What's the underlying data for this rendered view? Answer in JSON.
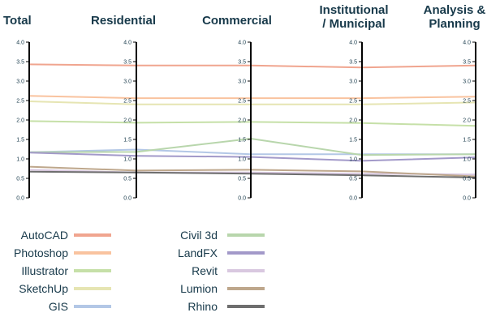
{
  "chart_data": {
    "type": "parallel-coordinates",
    "axes": [
      "Total",
      "Residential",
      "Commercial",
      "Institutional / Municipal",
      "Analysis & Planning"
    ],
    "axis_title_lines": [
      [
        "Total"
      ],
      [
        "Residential"
      ],
      [
        "Commercial"
      ],
      [
        "Institutional",
        "/ Municipal"
      ],
      [
        "Analysis &",
        "Planning"
      ]
    ],
    "ylim": [
      0,
      4.0
    ],
    "yticks": [
      "0.0",
      "0.5",
      "1.0",
      "1.5",
      "2.0",
      "2.5",
      "3.0",
      "3.5",
      "4.0"
    ],
    "series": [
      {
        "name": "AutoCAD",
        "color": "#f0a58f",
        "values": [
          3.43,
          3.4,
          3.4,
          3.35,
          3.4
        ]
      },
      {
        "name": "Photoshop",
        "color": "#f9c39f",
        "values": [
          2.62,
          2.56,
          2.56,
          2.56,
          2.6
        ]
      },
      {
        "name": "Illustrator",
        "color": "#c6e0a8",
        "values": [
          1.97,
          1.93,
          1.95,
          1.92,
          1.85
        ]
      },
      {
        "name": "SketchUp",
        "color": "#e6e5b3",
        "values": [
          2.48,
          2.4,
          2.4,
          2.4,
          2.45
        ]
      },
      {
        "name": "GIS",
        "color": "#b3c7e6",
        "values": [
          1.17,
          1.24,
          1.12,
          1.12,
          1.12
        ]
      },
      {
        "name": "Civil 3d",
        "color": "#b8d6ac",
        "values": [
          1.17,
          1.18,
          1.52,
          1.1,
          1.12
        ]
      },
      {
        "name": "LandFX",
        "color": "#a299c9",
        "values": [
          1.16,
          1.08,
          1.05,
          0.95,
          1.04
        ]
      },
      {
        "name": "Revit",
        "color": "#d9c8e0",
        "values": [
          0.72,
          0.65,
          0.65,
          0.62,
          0.6
        ]
      },
      {
        "name": "Lumion",
        "color": "#bea78c",
        "values": [
          0.8,
          0.7,
          0.72,
          0.68,
          0.55
        ]
      },
      {
        "name": "Rhino",
        "color": "#6e6e6e",
        "values": [
          0.67,
          0.65,
          0.62,
          0.58,
          0.52
        ]
      }
    ],
    "legend_columns": [
      [
        "AutoCAD",
        "Photoshop",
        "Illustrator",
        "SketchUp",
        "GIS"
      ],
      [
        "Civil 3d",
        "LandFX",
        "Revit",
        "Lumion",
        "Rhino"
      ]
    ]
  }
}
